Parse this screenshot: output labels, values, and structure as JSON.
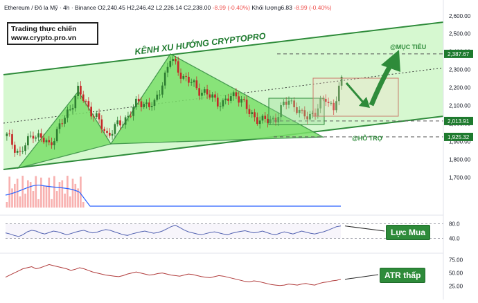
{
  "header": {
    "symbol": "Ethereum / Đô la Mỹ · 4h · Binance",
    "open": "O2,240.45",
    "high": "H2,246.42",
    "low": "L2,226.14",
    "close": "C2,238.00",
    "change": "-8.99 (-0.40%)",
    "volume_label": "Khối lượng",
    "volume_value": "6.83",
    "volume_change": "-8.99 (-0.40%)"
  },
  "brand": {
    "line1": "Trading thực chiến",
    "line2": "www.crypto.pro.vn"
  },
  "annotations": {
    "channel_title": "KÊNH XU HƯỚNG CRYPTOPRO",
    "target_label": "@MỤC TIÊU",
    "support_label": "@HỖ TRỢ",
    "rsi_callout": "Lực Mua",
    "atr_callout": "ATR thấp"
  },
  "colors": {
    "channel_fill": "#c8f5c0",
    "channel_line": "#2e8b3a",
    "triangle_fill": "#7be06a",
    "candle_up": "#26a69a",
    "candle_down": "#ef5350",
    "candle_green": "#2e7d32",
    "candle_red": "#c62828",
    "rsi_line": "#5060b0",
    "atr_line": "#b03a3a",
    "volume_line": "#2962ff"
  },
  "chart_data": [
    {
      "type": "candlestick",
      "title": "Ethereum / Đô la Mỹ · 4h · Binance",
      "y_axis_ticks": [
        "2,600.00",
        "2,500.00",
        "2,400.00",
        "2,300.00",
        "2,200.00",
        "2,100.00",
        "2,000.00",
        "1,900.00",
        "1,800.00",
        "1,700.00"
      ],
      "y_tick_values": [
        2600,
        2500,
        2400,
        2300,
        2200,
        2100,
        2000,
        1900,
        1800,
        1700
      ],
      "ylim": [
        1640,
        2630
      ],
      "price_labels": [
        {
          "text": "2,387.67",
          "value": 2387.67
        },
        {
          "text": "2,013.91",
          "value": 2013.91
        },
        {
          "text": "1,925.32",
          "value": 1925.32
        }
      ],
      "candle_count": 128,
      "key_prices": [
        {
          "index": 0,
          "price": 1930
        },
        {
          "index": 5,
          "price": 1830
        },
        {
          "index": 10,
          "price": 1950
        },
        {
          "index": 16,
          "price": 1880
        },
        {
          "index": 22,
          "price": 2030
        },
        {
          "index": 27,
          "price": 2180
        },
        {
          "index": 32,
          "price": 2070
        },
        {
          "index": 38,
          "price": 1940
        },
        {
          "index": 44,
          "price": 2010
        },
        {
          "index": 50,
          "price": 2120
        },
        {
          "index": 56,
          "price": 2100
        },
        {
          "index": 62,
          "price": 2360
        },
        {
          "index": 67,
          "price": 2260
        },
        {
          "index": 72,
          "price": 2200
        },
        {
          "index": 77,
          "price": 2150
        },
        {
          "index": 82,
          "price": 2110
        },
        {
          "index": 87,
          "price": 2170
        },
        {
          "index": 92,
          "price": 2060
        },
        {
          "index": 97,
          "price": 2010
        },
        {
          "index": 102,
          "price": 2030
        },
        {
          "index": 107,
          "price": 2140
        },
        {
          "index": 112,
          "price": 2040
        },
        {
          "index": 117,
          "price": 2060
        },
        {
          "index": 121,
          "price": 2150
        },
        {
          "index": 124,
          "price": 2080
        },
        {
          "index": 127,
          "price": 2238
        }
      ]
    },
    {
      "type": "line",
      "name": "RSI",
      "y_axis_ticks": [
        "80.0",
        "40.0"
      ],
      "y_tick_values": [
        80,
        40
      ],
      "ylim": [
        20,
        100
      ],
      "values": [
        55,
        52,
        48,
        45,
        50,
        58,
        62,
        60,
        55,
        52,
        56,
        60,
        58,
        54,
        50,
        53,
        57,
        60,
        62,
        58,
        55,
        57,
        61,
        64,
        62,
        58,
        54,
        50,
        48,
        52,
        55,
        58,
        60,
        57,
        54,
        56,
        60,
        66,
        72,
        76,
        70,
        63,
        58,
        55,
        52,
        50,
        53,
        56,
        58,
        55,
        52,
        50,
        54,
        57,
        59,
        61,
        58,
        55,
        57,
        60,
        56,
        52,
        50,
        54,
        58,
        55,
        52,
        56,
        60,
        57,
        54,
        52,
        55,
        58,
        62,
        67,
        72,
        74
      ]
    },
    {
      "type": "line",
      "name": "ATR",
      "y_axis_ticks": [
        "75.00",
        "50.00",
        "25.00"
      ],
      "y_tick_values": [
        75,
        50,
        25
      ],
      "ylim": [
        10,
        85
      ],
      "values": [
        42,
        46,
        50,
        54,
        58,
        60,
        62,
        58,
        60,
        63,
        66,
        64,
        62,
        60,
        58,
        55,
        57,
        60,
        58,
        55,
        52,
        50,
        48,
        46,
        45,
        44,
        43,
        45,
        48,
        50,
        52,
        50,
        48,
        46,
        47,
        49,
        50,
        48,
        46,
        45,
        44,
        46,
        48,
        47,
        45,
        43,
        42,
        41,
        43,
        45,
        44,
        42,
        40,
        38,
        36,
        34,
        33,
        35,
        34,
        32,
        30,
        28,
        27,
        26,
        27,
        29,
        28,
        27,
        29,
        30,
        28,
        27,
        30,
        32,
        33,
        35,
        36,
        38
      ]
    }
  ]
}
